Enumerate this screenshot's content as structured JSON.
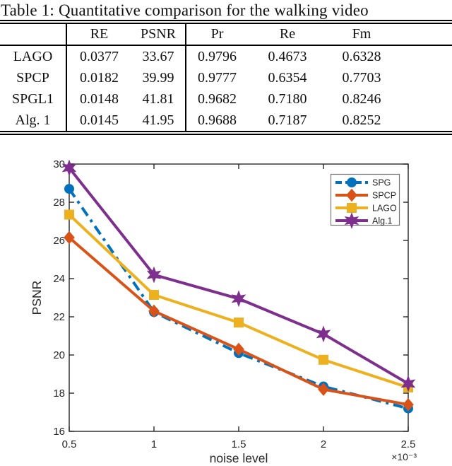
{
  "table": {
    "title": "Table 1: Quantitative comparison for the walking video",
    "columns": [
      "",
      "RE",
      "PSNR",
      "Pr",
      "Re",
      "Fm"
    ],
    "rows": [
      {
        "label": "LAGO",
        "values": [
          "0.0377",
          "33.67",
          "0.9796",
          "0.4673",
          "0.6328"
        ]
      },
      {
        "label": "SPCP",
        "values": [
          "0.0182",
          "39.99",
          "0.9777",
          "0.6354",
          "0.7703"
        ]
      },
      {
        "label": "SPGL1",
        "values": [
          "0.0148",
          "41.81",
          "0.9682",
          "0.7180",
          "0.8246"
        ]
      },
      {
        "label": "Alg. 1",
        "values": [
          "0.0145",
          "41.95",
          "0.9688",
          "0.7187",
          "0.8252"
        ]
      }
    ]
  },
  "chart_data": {
    "type": "line",
    "title": "",
    "xlabel": "noise level",
    "ylabel": "PSNR",
    "x_tick_labels": [
      "0.5",
      "1",
      "1.5",
      "2",
      "2.5"
    ],
    "x_values": [
      0.5,
      1,
      1.5,
      2,
      2.5
    ],
    "x_multiplier_label": "×10⁻³",
    "y_ticks": [
      16,
      18,
      20,
      22,
      24,
      26,
      28,
      30
    ],
    "xlim": [
      0.5,
      2.5
    ],
    "ylim": [
      16,
      30
    ],
    "grid": false,
    "legend_position": "top-right",
    "axis_color": "#262626",
    "series": [
      {
        "name": "SPG",
        "color": "#0072BD",
        "line_style": "dash-dot",
        "marker": "circle",
        "values": [
          28.7,
          22.25,
          20.1,
          18.35,
          17.2
        ]
      },
      {
        "name": "SPCP",
        "color": "#D95319",
        "line_style": "solid",
        "marker": "diamond",
        "values": [
          26.15,
          22.3,
          20.3,
          18.2,
          17.4
        ]
      },
      {
        "name": "LAGO",
        "color": "#EDB120",
        "line_style": "solid",
        "marker": "square",
        "values": [
          27.35,
          23.15,
          21.7,
          19.75,
          18.3
        ]
      },
      {
        "name": "Alg.1",
        "color": "#7E2F8E",
        "line_style": "solid",
        "marker": "hexagram",
        "values": [
          29.8,
          24.2,
          22.95,
          21.1,
          18.5
        ]
      }
    ]
  }
}
